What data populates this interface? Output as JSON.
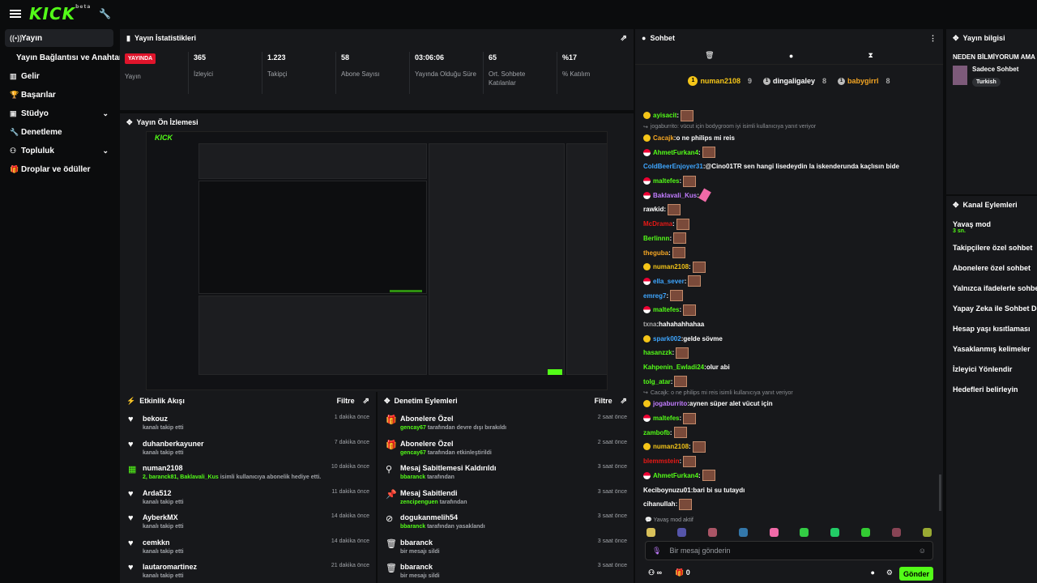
{
  "brand": {
    "logo": "KICK",
    "logo_sup": "beta",
    "accent": "#53fc18"
  },
  "sidebar": {
    "items": [
      {
        "label": "Yayın",
        "icon": "broadcast-icon",
        "active": true
      },
      {
        "label": "Yayın Bağlantısı ve Anahtarı",
        "sub": true
      },
      {
        "label": "Gelir",
        "icon": "chart-icon"
      },
      {
        "label": "Başarılar",
        "icon": "trophy-icon"
      },
      {
        "label": "Stüdyo",
        "icon": "studio-icon",
        "chevron": true
      },
      {
        "label": "Denetleme",
        "icon": "wrench-icon"
      },
      {
        "label": "Topluluk",
        "icon": "community-icon",
        "chevron": true
      },
      {
        "label": "Droplar ve ödüller",
        "icon": "gift-icon"
      }
    ]
  },
  "stats": {
    "title": "Yayın İstatistikleri",
    "live_badge": "YAYINDA",
    "live_label": "Yayın",
    "items": [
      {
        "value": "365",
        "label": "İzleyici"
      },
      {
        "value": "1.223",
        "label": "Takipçi"
      },
      {
        "value": "58",
        "label": "Abone Sayısı"
      },
      {
        "value": "03:06:06",
        "label": "Yayında Olduğu Süre"
      },
      {
        "value": "65",
        "label": "Ort. Sohbete Katılanlar"
      },
      {
        "value": "%17",
        "label": "% Katılım"
      }
    ]
  },
  "preview": {
    "title": "Yayın Ön İzlemesi"
  },
  "activity": {
    "title": "Etkinlik Akışı",
    "filter": "Filtre",
    "rows": [
      {
        "name": "bekouz",
        "sub": "kanalı takip etti",
        "time": "1 dakika önce",
        "icon": "heart-icon"
      },
      {
        "name": "duhanberkayuner",
        "sub": "kanalı takip etti",
        "time": "7 dakika önce",
        "icon": "heart-icon"
      },
      {
        "name": "numan2108",
        "sub_green": "2, baranck81, Baklavali_Kus",
        "sub": " isimli kullanıcıya abonelik hediye etti.",
        "time": "10 dakika önce",
        "icon": "gift-sub-icon"
      },
      {
        "name": "Arda512",
        "sub": "kanalı takip etti",
        "time": "11 dakika önce",
        "icon": "heart-icon"
      },
      {
        "name": "AyberkMX",
        "sub": "kanalı takip etti",
        "time": "14 dakika önce",
        "icon": "heart-icon"
      },
      {
        "name": "cemkkn",
        "sub": "kanalı takip etti",
        "time": "14 dakika önce",
        "icon": "heart-icon"
      },
      {
        "name": "lautaromartinez",
        "sub": "kanalı takip etti",
        "time": "21 dakika önce",
        "icon": "heart-icon"
      }
    ]
  },
  "moderation": {
    "title": "Denetim Eylemleri",
    "filter": "Filtre",
    "rows": [
      {
        "name": "Abonelere Özel",
        "sub_green": "gencay67",
        "sub": " tarafından devre dışı bırakıldı",
        "time": "2 saat önce",
        "icon": "gift-icon"
      },
      {
        "name": "Abonelere Özel",
        "sub_green": "gencay67",
        "sub": " tarafından etkinleştirildi",
        "time": "2 saat önce",
        "icon": "gift-icon"
      },
      {
        "name": "Mesaj Sabitlemesi Kaldırıldı",
        "sub_green": "bbaranck",
        "sub": " tarafından",
        "time": "3 saat önce",
        "icon": "unpin-icon"
      },
      {
        "name": "Mesaj Sabitlendi",
        "sub_green": "zencipenguen",
        "sub": " tarafından",
        "time": "3 saat önce",
        "icon": "pin-icon"
      },
      {
        "name": "dogukanmelih54",
        "sub_green": "bbaranck",
        "sub": " tarafından yasaklandı",
        "time": "3 saat önce",
        "icon": "ban-icon"
      },
      {
        "name": "bbaranck",
        "sub": "bir mesajı sildi",
        "time": "3 saat önce",
        "icon": "trash-icon"
      },
      {
        "name": "bbaranck",
        "sub": "bir mesajı sildi",
        "time": "3 saat önce",
        "icon": "trash-icon"
      }
    ]
  },
  "chat": {
    "title": "Sohbet",
    "gifters": [
      {
        "name": "numan2108",
        "count": "9",
        "color": "#f5c518"
      },
      {
        "name": "dingaligaley",
        "count": "8",
        "color": "#ffffff"
      },
      {
        "name": "babygirrl",
        "count": "8",
        "color": "#f5a623"
      }
    ],
    "messages": [
      {
        "user": "ayisacit",
        "color": "#53fc18",
        "text": "",
        "badge": "sub",
        "emote": true
      },
      {
        "reply": "jogaburrito: vücut için bodygroom iyi isimli kullanıcıya yanıt veriyor"
      },
      {
        "user": "Cacajk",
        "color": "#f5a623",
        "text": "o ne philips mi reis",
        "badge": "sub"
      },
      {
        "user": "AhmetFurkan4",
        "color": "#53fc18",
        "text": "",
        "badge": "pk",
        "emote": true
      },
      {
        "user": "ColdBeerEnjoyer31",
        "color": "#3ea6ff",
        "text": "@Cino01TR sen hangi lisedeydin la iskenderunda kaçlısın bide",
        "mention": "@Cino01TR"
      },
      {
        "user": "maltefes",
        "color": "#53fc18",
        "text": "",
        "badge": "pk",
        "emote": true
      },
      {
        "user": "Baklavali_Kus",
        "color": "#c27cff",
        "text": "",
        "badge": "pk",
        "emote_pink": true
      },
      {
        "user": "rawkid",
        "color": "#ffffff",
        "text": "",
        "emote": true
      },
      {
        "user": "McDrama",
        "color": "#e91916",
        "text": "",
        "emote": true
      },
      {
        "user": "Berlinnn",
        "color": "#53fc18",
        "text": "",
        "emote": true
      },
      {
        "user": "theguba",
        "color": "#f5a623",
        "text": "",
        "emote": true
      },
      {
        "user": "numan2108",
        "color": "#f5c518",
        "text": "",
        "badge": "sub",
        "emote": true
      },
      {
        "user": "ella_sever",
        "color": "#3ea6ff",
        "text": "",
        "badge": "pk",
        "emote": true
      },
      {
        "user": "emreg7",
        "color": "#3ea6ff",
        "text": "",
        "emote": true
      },
      {
        "user": "maltefes",
        "color": "#53fc18",
        "text": "",
        "badge": "pk",
        "emote": true
      },
      {
        "user": "txna",
        "color": "#aaaaaa",
        "text": "hahahahhahaa"
      },
      {
        "user": "spark002",
        "color": "#3ea6ff",
        "text": "gelde sövme",
        "badge": "sub"
      },
      {
        "user": "hasanzzk",
        "color": "#53fc18",
        "text": "",
        "emote": true
      },
      {
        "user": "Kahpenin_Ewladi24",
        "color": "#53fc18",
        "text": "olur abi"
      },
      {
        "user": "tolg_atar",
        "color": "#53fc18",
        "text": "",
        "emote": true
      },
      {
        "reply": "Cacajk: o ne philips mi reis isimli kullanıcıya yanıt veriyor"
      },
      {
        "user": "jogaburrito",
        "color": "#c27cff",
        "text": "aynen süper alet vücut için",
        "badge": "sub"
      },
      {
        "user": "maltefes",
        "color": "#53fc18",
        "text": "",
        "badge": "pk",
        "emote": true
      },
      {
        "user": "zambofb",
        "color": "#53fc18",
        "text": "",
        "emote": true
      },
      {
        "user": "numan2108",
        "color": "#f5c518",
        "text": "",
        "badge": "sub",
        "emote": true
      },
      {
        "user": "blemmstein",
        "color": "#e91916",
        "text": "",
        "emote": true
      },
      {
        "user": "AhmetFurkan4",
        "color": "#53fc18",
        "text": "",
        "badge": "pk",
        "emote": true
      },
      {
        "user": "Keciboynuzu01",
        "color": "#ffffff",
        "text": "bari bi su tutaydı"
      },
      {
        "user": "cihanullah",
        "color": "#ffffff",
        "text": "",
        "emote": true
      }
    ],
    "slow_mode_note": "Yavaş mod aktif",
    "input_placeholder": "Bir mesaj gönderin",
    "infinity": "∞",
    "gift_count": "0",
    "send": "Gönder"
  },
  "stream_info": {
    "title": "Yayın bilgisi",
    "stream_title": "NEDEN BİLMİYORUM AMA",
    "category": "Sadece Sohbet",
    "tag": "Turkish"
  },
  "channel_actions": {
    "title": "Kanal Eylemleri",
    "items": [
      {
        "label": "Yavaş mod",
        "value": "3 sn."
      },
      {
        "label": "Takipçilere özel sohbet"
      },
      {
        "label": "Abonelere özel sohbet"
      },
      {
        "label": "Yalnızca ifadelerle sohbet"
      },
      {
        "label": "Yapay Zeka ile Sohbet Dene"
      },
      {
        "label": "Hesap yaşı kısıtlaması"
      },
      {
        "label": "Yasaklanmış kelimeler"
      },
      {
        "label": "İzleyici Yönlendir"
      },
      {
        "label": "Hedefleri belirleyin"
      }
    ]
  }
}
